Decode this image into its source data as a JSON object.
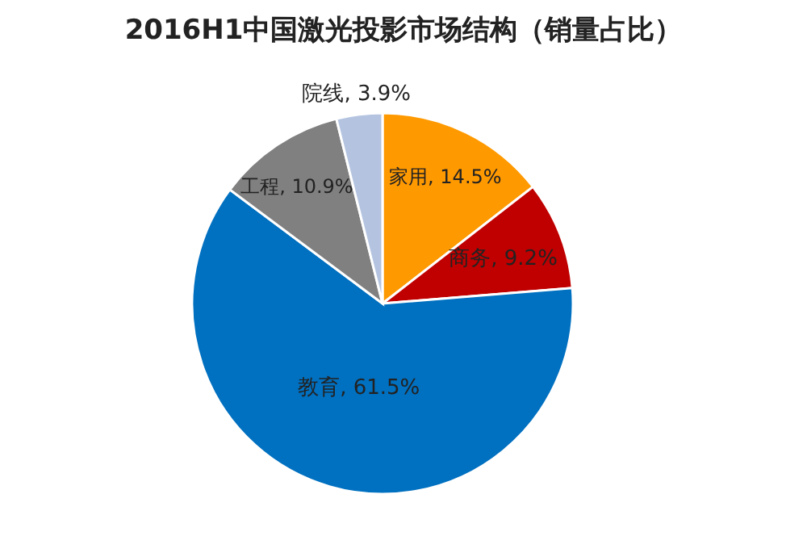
{
  "chart_data": {
    "type": "pie",
    "title": "2016H1中国激光投影市场结构（销量占比）",
    "categories": [
      "家用",
      "商务",
      "教育",
      "工程",
      "院线"
    ],
    "values": [
      14.5,
      9.2,
      61.5,
      10.9,
      3.9
    ],
    "colors": [
      "#ff9900",
      "#c00000",
      "#0070c0",
      "#808080",
      "#b4c4e0"
    ],
    "value_labels": [
      "14.5%",
      "9.2%",
      "61.5%",
      "10.9%",
      "3.9%"
    ]
  }
}
